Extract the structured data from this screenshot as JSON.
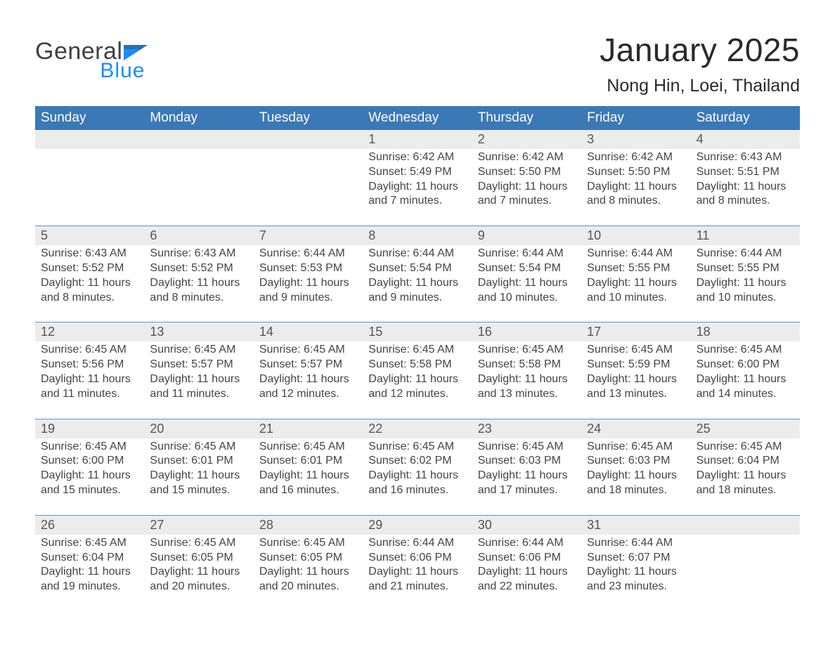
{
  "logo": {
    "line1": "General",
    "line2": "Blue"
  },
  "title": "January 2025",
  "location": "Nong Hin, Loei, Thailand",
  "colors": {
    "header_bg": "#3b78b6",
    "row_gray": "#ececec",
    "border_blue": "#5a95ce",
    "logo_blue": "#1a8cff",
    "text_dark": "#333333"
  },
  "dow": [
    "Sunday",
    "Monday",
    "Tuesday",
    "Wednesday",
    "Thursday",
    "Friday",
    "Saturday"
  ],
  "weeks": [
    [
      null,
      null,
      null,
      {
        "n": "1",
        "sr": "6:42 AM",
        "ss": "5:49 PM",
        "dl": "11 hours and 7 minutes."
      },
      {
        "n": "2",
        "sr": "6:42 AM",
        "ss": "5:50 PM",
        "dl": "11 hours and 7 minutes."
      },
      {
        "n": "3",
        "sr": "6:42 AM",
        "ss": "5:50 PM",
        "dl": "11 hours and 8 minutes."
      },
      {
        "n": "4",
        "sr": "6:43 AM",
        "ss": "5:51 PM",
        "dl": "11 hours and 8 minutes."
      }
    ],
    [
      {
        "n": "5",
        "sr": "6:43 AM",
        "ss": "5:52 PM",
        "dl": "11 hours and 8 minutes."
      },
      {
        "n": "6",
        "sr": "6:43 AM",
        "ss": "5:52 PM",
        "dl": "11 hours and 8 minutes."
      },
      {
        "n": "7",
        "sr": "6:44 AM",
        "ss": "5:53 PM",
        "dl": "11 hours and 9 minutes."
      },
      {
        "n": "8",
        "sr": "6:44 AM",
        "ss": "5:54 PM",
        "dl": "11 hours and 9 minutes."
      },
      {
        "n": "9",
        "sr": "6:44 AM",
        "ss": "5:54 PM",
        "dl": "11 hours and 10 minutes."
      },
      {
        "n": "10",
        "sr": "6:44 AM",
        "ss": "5:55 PM",
        "dl": "11 hours and 10 minutes."
      },
      {
        "n": "11",
        "sr": "6:44 AM",
        "ss": "5:55 PM",
        "dl": "11 hours and 10 minutes."
      }
    ],
    [
      {
        "n": "12",
        "sr": "6:45 AM",
        "ss": "5:56 PM",
        "dl": "11 hours and 11 minutes."
      },
      {
        "n": "13",
        "sr": "6:45 AM",
        "ss": "5:57 PM",
        "dl": "11 hours and 11 minutes."
      },
      {
        "n": "14",
        "sr": "6:45 AM",
        "ss": "5:57 PM",
        "dl": "11 hours and 12 minutes."
      },
      {
        "n": "15",
        "sr": "6:45 AM",
        "ss": "5:58 PM",
        "dl": "11 hours and 12 minutes."
      },
      {
        "n": "16",
        "sr": "6:45 AM",
        "ss": "5:58 PM",
        "dl": "11 hours and 13 minutes."
      },
      {
        "n": "17",
        "sr": "6:45 AM",
        "ss": "5:59 PM",
        "dl": "11 hours and 13 minutes."
      },
      {
        "n": "18",
        "sr": "6:45 AM",
        "ss": "6:00 PM",
        "dl": "11 hours and 14 minutes."
      }
    ],
    [
      {
        "n": "19",
        "sr": "6:45 AM",
        "ss": "6:00 PM",
        "dl": "11 hours and 15 minutes."
      },
      {
        "n": "20",
        "sr": "6:45 AM",
        "ss": "6:01 PM",
        "dl": "11 hours and 15 minutes."
      },
      {
        "n": "21",
        "sr": "6:45 AM",
        "ss": "6:01 PM",
        "dl": "11 hours and 16 minutes."
      },
      {
        "n": "22",
        "sr": "6:45 AM",
        "ss": "6:02 PM",
        "dl": "11 hours and 16 minutes."
      },
      {
        "n": "23",
        "sr": "6:45 AM",
        "ss": "6:03 PM",
        "dl": "11 hours and 17 minutes."
      },
      {
        "n": "24",
        "sr": "6:45 AM",
        "ss": "6:03 PM",
        "dl": "11 hours and 18 minutes."
      },
      {
        "n": "25",
        "sr": "6:45 AM",
        "ss": "6:04 PM",
        "dl": "11 hours and 18 minutes."
      }
    ],
    [
      {
        "n": "26",
        "sr": "6:45 AM",
        "ss": "6:04 PM",
        "dl": "11 hours and 19 minutes."
      },
      {
        "n": "27",
        "sr": "6:45 AM",
        "ss": "6:05 PM",
        "dl": "11 hours and 20 minutes."
      },
      {
        "n": "28",
        "sr": "6:45 AM",
        "ss": "6:05 PM",
        "dl": "11 hours and 20 minutes."
      },
      {
        "n": "29",
        "sr": "6:44 AM",
        "ss": "6:06 PM",
        "dl": "11 hours and 21 minutes."
      },
      {
        "n": "30",
        "sr": "6:44 AM",
        "ss": "6:06 PM",
        "dl": "11 hours and 22 minutes."
      },
      {
        "n": "31",
        "sr": "6:44 AM",
        "ss": "6:07 PM",
        "dl": "11 hours and 23 minutes."
      },
      null
    ]
  ],
  "labels": {
    "sunrise": "Sunrise:",
    "sunset": "Sunset:",
    "daylight": "Daylight:"
  }
}
